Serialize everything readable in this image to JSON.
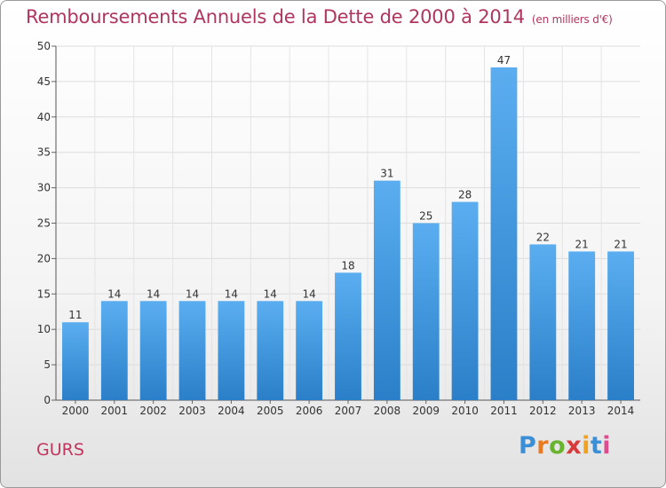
{
  "title": "Remboursements Annuels de la Dette de 2000 à 2014",
  "subtitle": "(en milliers d'€)",
  "commune": "GURS",
  "logo": "Proxiti",
  "chart_data": {
    "type": "bar",
    "categories": [
      "2000",
      "2001",
      "2002",
      "2003",
      "2004",
      "2005",
      "2006",
      "2007",
      "2008",
      "2009",
      "2010",
      "2011",
      "2012",
      "2013",
      "2014"
    ],
    "values": [
      11,
      14,
      14,
      14,
      14,
      14,
      14,
      18,
      31,
      25,
      28,
      47,
      22,
      21,
      21
    ],
    "ylim": [
      0,
      50
    ],
    "yticks": [
      0,
      5,
      10,
      15,
      20,
      25,
      30,
      35,
      40,
      45,
      50
    ],
    "grid": true,
    "bar_color_top": "#5aaef0",
    "bar_color_bottom": "#2a7fc8",
    "label_color": "#333333",
    "title_color": "#b0365e"
  }
}
